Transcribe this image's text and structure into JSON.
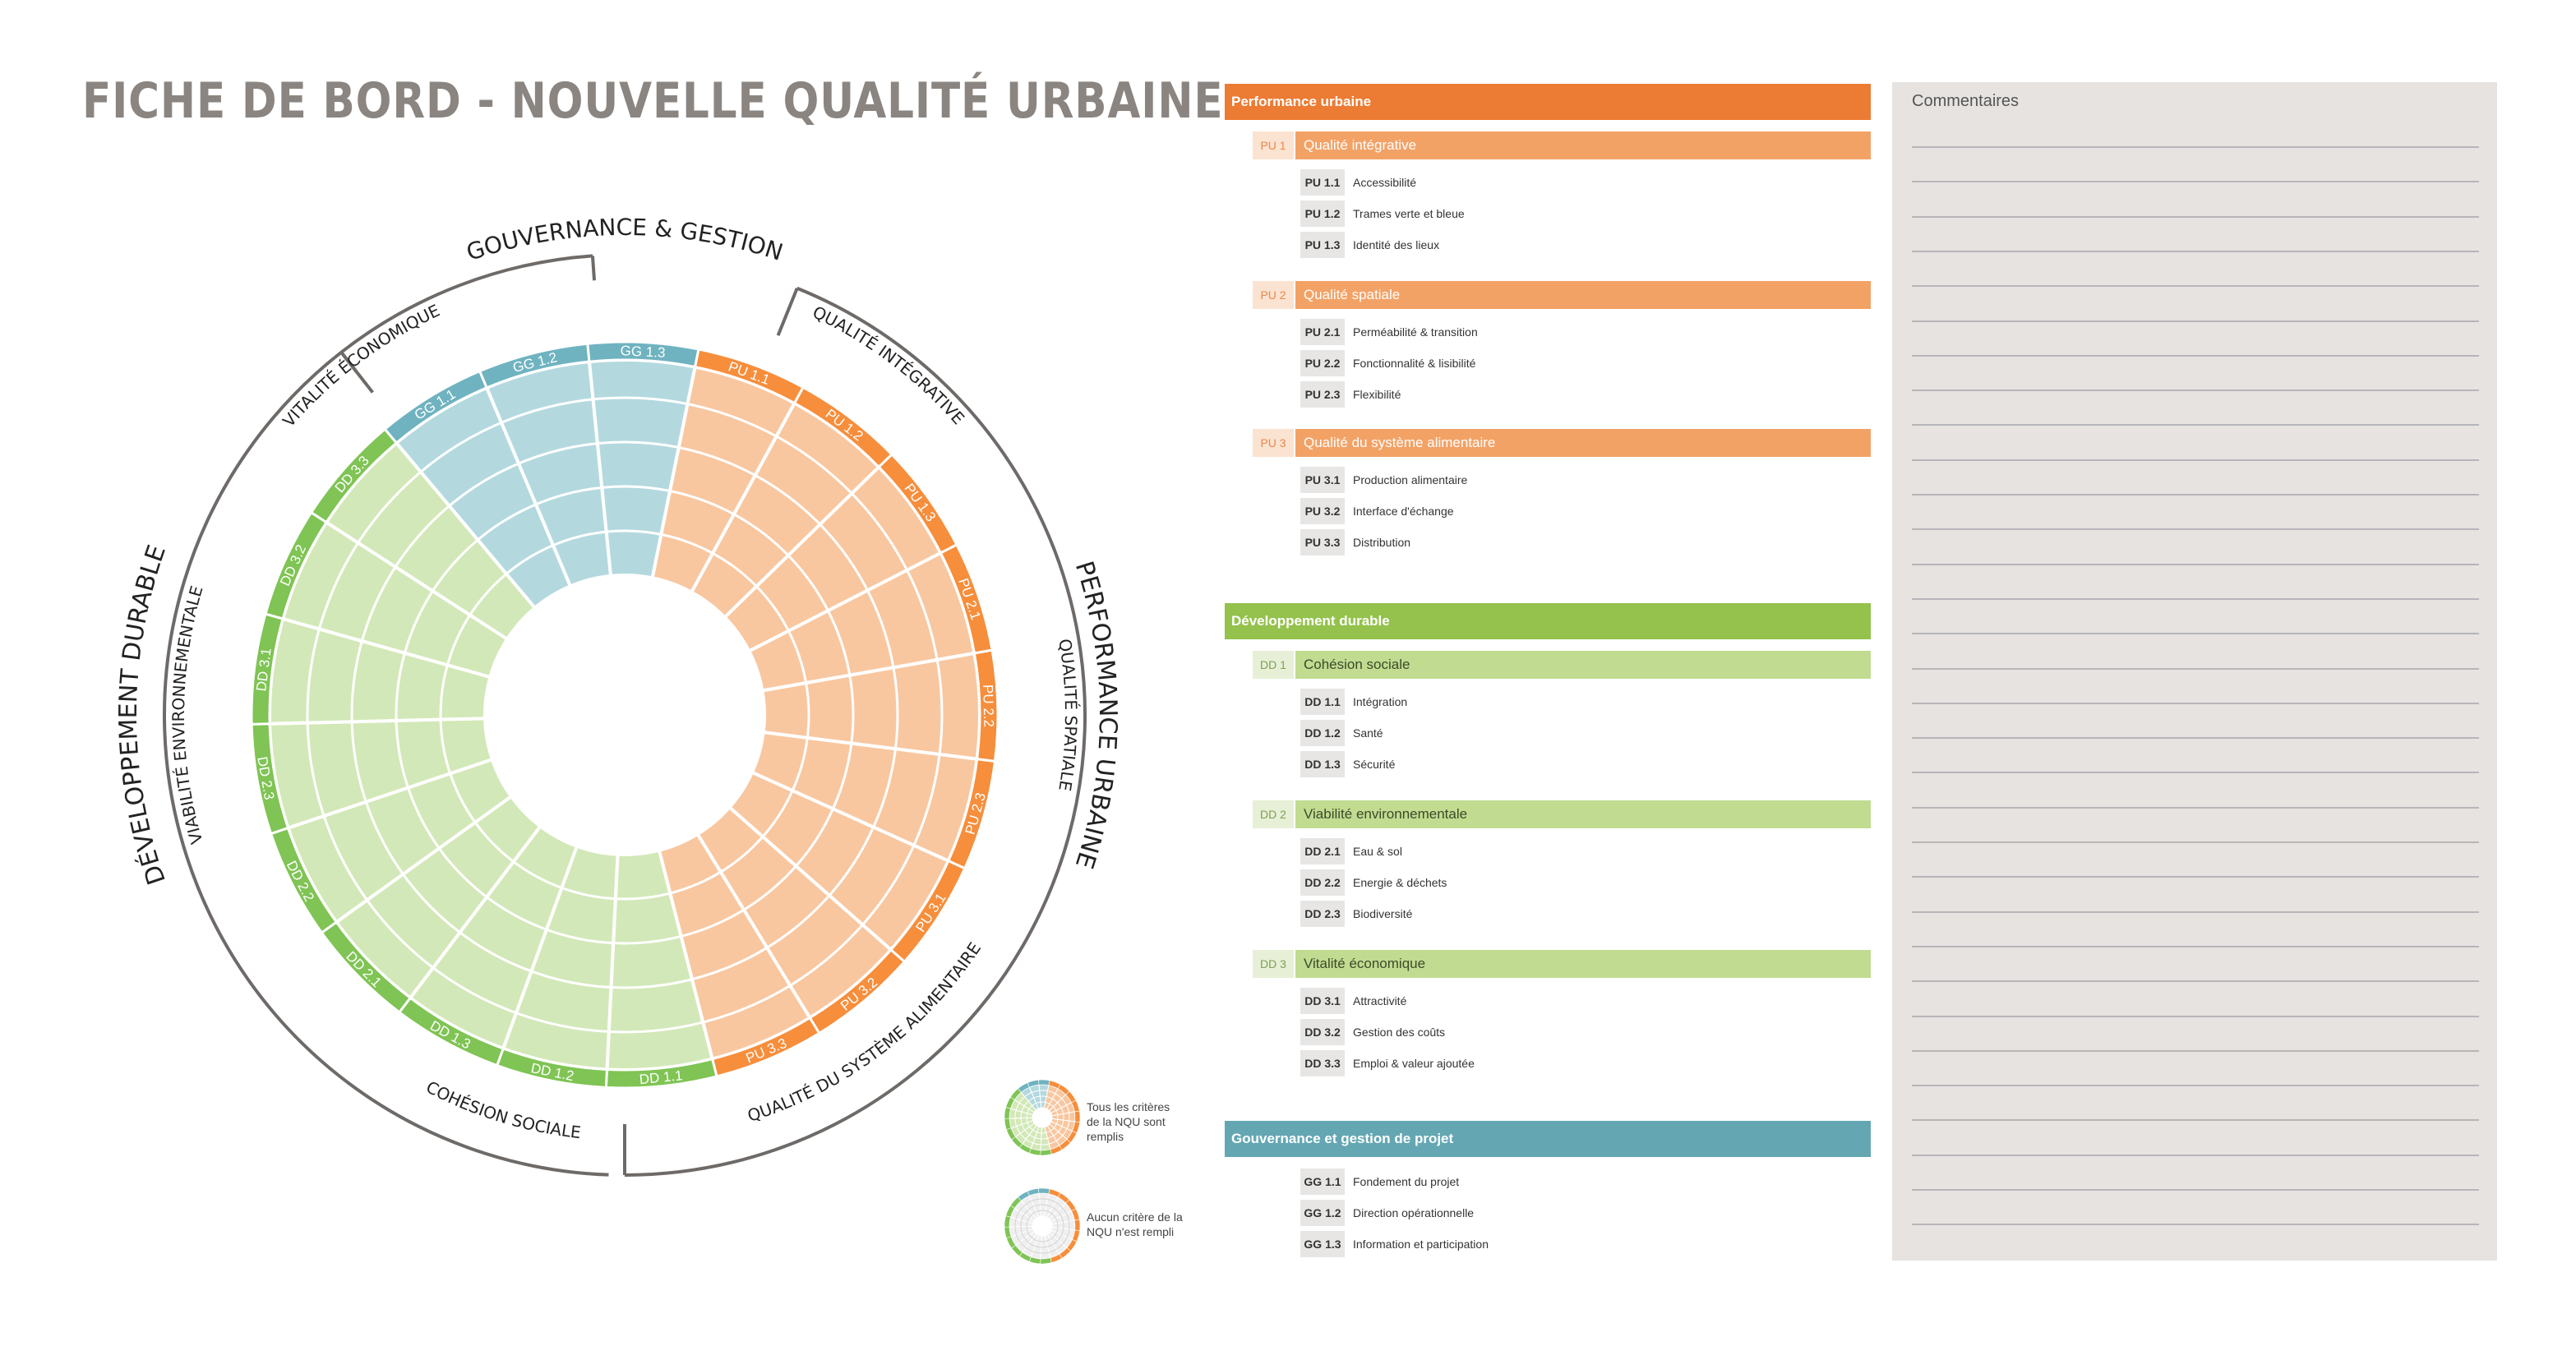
{
  "title": "FICHE DE BORD - NOUVELLE QUALITÉ URBAINE",
  "colors": {
    "orange_dark": "#ec7b33",
    "orange_mid": "#f3a266",
    "orange_light": "#f8c7a0",
    "orange_rim": "#f68e3c",
    "green_dark": "#94c24c",
    "green_mid": "#c1db90",
    "green_light": "#d3e8b8",
    "green_rim": "#7fc454",
    "blue_dark": "#64a7b3",
    "blue_light": "#b3d9df",
    "blue_rim": "#6fb3c0",
    "gray_line": "#6e6a68",
    "comments_bg": "#e6e3e0"
  },
  "wheel": {
    "groups": [
      {
        "label": "GOUVERNANCE & GESTION",
        "start": 20,
        "end": 70,
        "outer": true
      },
      {
        "label": "PERFORMANCE URBAINE",
        "start": 70,
        "end": 180,
        "outer": true
      },
      {
        "label": "DÉVELOPPEMENT DURABLE",
        "start": 180,
        "end": 340,
        "outer": true
      }
    ],
    "sublabels": [
      {
        "label": "QUALITÉ INTÉGRATIVE",
        "mid": 37
      },
      {
        "label": "QUALITÉ SPATIALE",
        "mid": 90
      },
      {
        "label": "QUALITÉ DU SYSTÈME ALIMENTAIRE",
        "mid": 143
      },
      {
        "label": "COHÉSION SOCIALE",
        "mid": 197
      },
      {
        "label": "VIABILITÉ ENVIRONNEMENTALE",
        "mid": 270
      },
      {
        "label": "VITALITÉ ÉCONOMIQUE",
        "mid": 323
      }
    ],
    "sectors": [
      {
        "code": "PU 1.1",
        "family": "orange"
      },
      {
        "code": "PU 1.2",
        "family": "orange"
      },
      {
        "code": "PU 1.3",
        "family": "orange"
      },
      {
        "code": "PU 2.1",
        "family": "orange"
      },
      {
        "code": "PU 2.2",
        "family": "orange"
      },
      {
        "code": "PU 2.3",
        "family": "orange"
      },
      {
        "code": "PU 3.1",
        "family": "orange"
      },
      {
        "code": "PU 3.2",
        "family": "orange"
      },
      {
        "code": "PU 3.3",
        "family": "orange"
      },
      {
        "code": "DD 1.1",
        "family": "green"
      },
      {
        "code": "DD 1.2",
        "family": "green"
      },
      {
        "code": "DD 1.3",
        "family": "green"
      },
      {
        "code": "DD 2.1",
        "family": "green"
      },
      {
        "code": "DD 2.2",
        "family": "green"
      },
      {
        "code": "DD 2.3",
        "family": "green"
      },
      {
        "code": "DD 3.1",
        "family": "green"
      },
      {
        "code": "DD 3.2",
        "family": "green"
      },
      {
        "code": "DD 3.3",
        "family": "green"
      },
      {
        "code": "GG 1.1",
        "family": "blue"
      },
      {
        "code": "GG 1.2",
        "family": "blue"
      },
      {
        "code": "GG 1.3",
        "family": "blue"
      }
    ]
  },
  "legend": {
    "full": "Tous les critères de la NQU sont remplis",
    "empty": "Aucun critère de la NQU n'est rempli"
  },
  "sections": [
    {
      "label": "Performance urbaine",
      "color": "orange",
      "subs": [
        {
          "code": "PU 1",
          "label": "Qualité intégrative",
          "items": [
            {
              "code": "PU 1.1",
              "label": "Accessibilité"
            },
            {
              "code": "PU 1.2",
              "label": "Trames verte et bleue"
            },
            {
              "code": "PU 1.3",
              "label": "Identité des lieux"
            }
          ]
        },
        {
          "code": "PU 2",
          "label": "Qualité spatiale",
          "items": [
            {
              "code": "PU 2.1",
              "label": "Perméabilité & transition"
            },
            {
              "code": "PU 2.2",
              "label": "Fonctionnalité & lisibilité"
            },
            {
              "code": "PU 2.3",
              "label": "Flexibilité"
            }
          ]
        },
        {
          "code": "PU 3",
          "label": "Qualité du système alimentaire",
          "items": [
            {
              "code": "PU 3.1",
              "label": "Production alimentaire"
            },
            {
              "code": "PU 3.2",
              "label": "Interface d'échange"
            },
            {
              "code": "PU 3.3",
              "label": "Distribution"
            }
          ]
        }
      ]
    },
    {
      "label": "Développement durable",
      "color": "green",
      "subs": [
        {
          "code": "DD 1",
          "label": "Cohésion sociale",
          "items": [
            {
              "code": "DD 1.1",
              "label": "Intégration"
            },
            {
              "code": "DD 1.2",
              "label": "Santé"
            },
            {
              "code": "DD 1.3",
              "label": "Sécurité"
            }
          ]
        },
        {
          "code": "DD 2",
          "label": "Viabilité environnementale",
          "items": [
            {
              "code": "DD 2.1",
              "label": "Eau & sol"
            },
            {
              "code": "DD 2.2",
              "label": "Energie & déchets"
            },
            {
              "code": "DD 2.3",
              "label": "Biodiversité"
            }
          ]
        },
        {
          "code": "DD 3",
          "label": "Vitalité économique",
          "items": [
            {
              "code": "DD 3.1",
              "label": "Attractivité"
            },
            {
              "code": "DD 3.2",
              "label": "Gestion des coûts"
            },
            {
              "code": "DD 3.3",
              "label": "Emploi & valeur ajoutée"
            }
          ]
        }
      ]
    },
    {
      "label": "Gouvernance et gestion de projet",
      "color": "blue",
      "subs": [
        {
          "code": "",
          "label": "",
          "items": [
            {
              "code": "GG 1.1",
              "label": "Fondement du projet"
            },
            {
              "code": "GG 1.2",
              "label": "Direction opérationnelle"
            },
            {
              "code": "GG 1.3",
              "label": "Information et participation"
            }
          ]
        }
      ]
    }
  ],
  "comments": {
    "label": "Commentaires"
  }
}
